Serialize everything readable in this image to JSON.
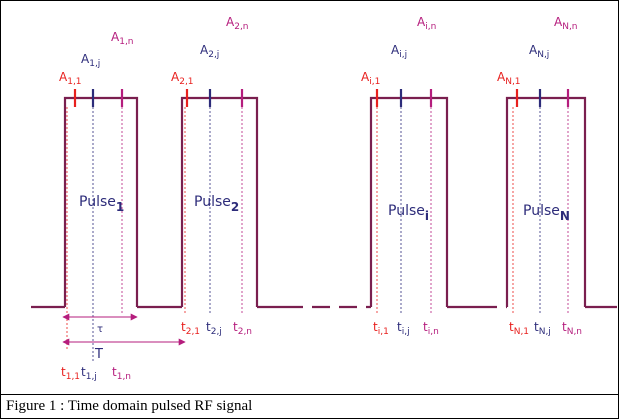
{
  "caption": "Figure 1 : Time domain pulsed RF signal",
  "colors": {
    "signal": "#7a1f4f",
    "red": "#e8201e",
    "navy": "#2d2c7a",
    "magenta": "#b51d7d",
    "caption_border": "#000000"
  },
  "pulses": [
    {
      "name": "Pulse",
      "sub": "1",
      "a_first": {
        "base": "A",
        "sub": "1,1"
      },
      "a_mid": {
        "base": "A",
        "sub": "1,j"
      },
      "a_last": {
        "base": "A",
        "sub": "1,n"
      },
      "t_first": {
        "base": "t",
        "sub": "1,1"
      },
      "t_mid": {
        "base": "t",
        "sub": "1,j"
      },
      "t_last": {
        "base": "t",
        "sub": "1,n"
      }
    },
    {
      "name": "Pulse",
      "sub": "2",
      "a_first": {
        "base": "A",
        "sub": "2,1"
      },
      "a_mid": {
        "base": "A",
        "sub": "2,j"
      },
      "a_last": {
        "base": "A",
        "sub": "2,n"
      },
      "t_first": {
        "base": "t",
        "sub": "2,1"
      },
      "t_mid": {
        "base": "t",
        "sub": "2,j"
      },
      "t_last": {
        "base": "t",
        "sub": "2,n"
      }
    },
    {
      "name": "Pulse",
      "sub": "i",
      "a_first": {
        "base": "A",
        "sub": "i,1"
      },
      "a_mid": {
        "base": "A",
        "sub": "i,j"
      },
      "a_last": {
        "base": "A",
        "sub": "i,n"
      },
      "t_first": {
        "base": "t",
        "sub": "i,1"
      },
      "t_mid": {
        "base": "t",
        "sub": "i,j"
      },
      "t_last": {
        "base": "t",
        "sub": "i,n"
      }
    },
    {
      "name": "Pulse",
      "sub": "N",
      "a_first": {
        "base": "A",
        "sub": "N,1"
      },
      "a_mid": {
        "base": "A",
        "sub": "N,j"
      },
      "a_last": {
        "base": "A",
        "sub": "N,n"
      },
      "t_first": {
        "base": "t",
        "sub": "N,1"
      },
      "t_mid": {
        "base": "t",
        "sub": "N,j"
      },
      "t_last": {
        "base": "t",
        "sub": "N,n"
      }
    }
  ],
  "pulse_width_label": "τ",
  "period_label": "T"
}
